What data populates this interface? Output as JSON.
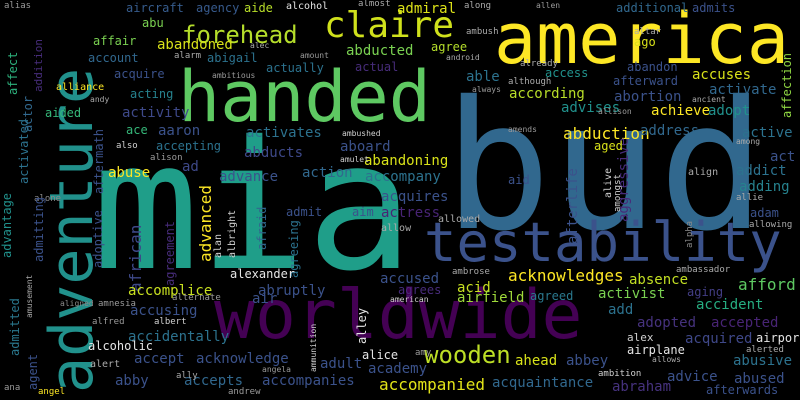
{
  "background": "#000000",
  "words": [
    {
      "text": "bud",
      "color": "#31688e"
    },
    {
      "text": "mia",
      "color": "#1f9e89"
    },
    {
      "text": "america",
      "color": "#fde725"
    },
    {
      "text": "handed",
      "color": "#5ec962"
    },
    {
      "text": "worldwide",
      "color": "#440154"
    },
    {
      "text": "testability",
      "color": "#3b528b"
    },
    {
      "text": "adventure",
      "color": "#21918c"
    },
    {
      "text": "claire",
      "color": "#d0e11c"
    },
    {
      "text": "forehead",
      "color": "#b5de2b"
    },
    {
      "text": "wooden",
      "color": "#bddf26"
    },
    {
      "text": "abduction",
      "color": "#fde725"
    },
    {
      "text": "acknowledges",
      "color": "#fde725"
    },
    {
      "text": "abandoned",
      "color": "#d8e219"
    },
    {
      "text": "accompanied",
      "color": "#e2e418"
    },
    {
      "text": "admiral",
      "color": "#dde318"
    },
    {
      "text": "african",
      "color": "#3e4989"
    },
    {
      "text": "advanced",
      "color": "#fde725"
    },
    {
      "text": "adopted",
      "color": "#46327e"
    },
    {
      "text": "accepted",
      "color": "#482475"
    },
    {
      "text": "acquired",
      "color": "#3f4889"
    },
    {
      "text": "abused",
      "color": "#3b528b"
    },
    {
      "text": "abusive",
      "color": "#2c728e"
    },
    {
      "text": "aggressive",
      "color": "#472c7a"
    },
    {
      "text": "afterlife",
      "color": "#3b528b"
    },
    {
      "text": "acid",
      "color": "#c8e020"
    },
    {
      "text": "absence",
      "color": "#c2df23"
    },
    {
      "text": "afford",
      "color": "#5ec962"
    },
    {
      "text": "accident",
      "color": "#26ad81"
    },
    {
      "text": "activist",
      "color": "#7ad151"
    },
    {
      "text": "aging",
      "color": "#433e85"
    },
    {
      "text": "airfield",
      "color": "#9fda3a"
    },
    {
      "text": "agreed",
      "color": "#2a788e"
    },
    {
      "text": "accessible",
      "color": "#481b6d"
    }
  ],
  "small_words": [
    "aircraft",
    "agency",
    "aide",
    "alcohol",
    "almost",
    "alias",
    "abu",
    "affect",
    "admits",
    "addition",
    "additional",
    "affection",
    "affair",
    "account",
    "acquire",
    "actually",
    "actual",
    "abigail",
    "abducted",
    "agree",
    "ago",
    "access",
    "abandon",
    "accuses",
    "able",
    "according",
    "afterward",
    "activate",
    "abortion",
    "adopt",
    "acting",
    "activity",
    "ace",
    "aaron",
    "activates",
    "accepting",
    "abducts",
    "aboard",
    "abandoning",
    "advises",
    "achieve",
    "address",
    "active",
    "act",
    "addict",
    "adding",
    "ad",
    "abuse",
    "advance",
    "action",
    "accompany",
    "aid",
    "aged",
    "alone",
    "actor",
    "acquires",
    "actress",
    "aim",
    "admit",
    "adam",
    "agent",
    "admitted",
    "admitting",
    "advantage",
    "activated",
    "adoptive",
    "aftermath",
    "agreement",
    "afraid",
    "alan",
    "albright",
    "agreeing",
    "alexander",
    "accused",
    "accomplice",
    "abruptly",
    "agrees",
    "add",
    "accusing",
    "accidentally",
    "air",
    "alley",
    "alice",
    "amy",
    "alex",
    "airport",
    "airplane",
    "accept",
    "acknowledge",
    "adult",
    "academy",
    "ahead",
    "abbey",
    "abby",
    "accepts",
    "accompanies",
    "acquaintance",
    "abraham",
    "advice",
    "afterwards",
    "aided",
    "alliance",
    "alternate",
    "amnesia",
    "allowed",
    "allow",
    "aligned",
    "align",
    "alive",
    "amongst",
    "alpha",
    "alcoholic",
    "alert",
    "albert",
    "alfred",
    "andrew",
    "angela",
    "angel",
    "ana",
    "ambition",
    "american",
    "ambrose",
    "ambassador",
    "allowing",
    "altar",
    "already",
    "although",
    "always",
    "ambitious",
    "alarm",
    "alec",
    "along",
    "ambush",
    "android",
    "ancient",
    "andy",
    "allen",
    "amount",
    "amends",
    "amulet",
    "among",
    "allison",
    "also",
    "alison",
    "allie",
    "alerted",
    "allows",
    "ammunition",
    "ally",
    "ambushed",
    "amusement"
  ]
}
